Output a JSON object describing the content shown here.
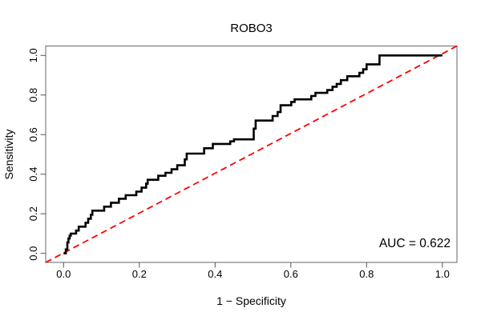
{
  "figure": {
    "kind": "ROC curve plot (R base graphics style)",
    "background": "#FFFFFF"
  },
  "colors": {
    "curve": "#000000",
    "diagonal": "#FF0000",
    "frame": "#666666",
    "tick": "#555555",
    "text": "#000000",
    "background": "#FFFFFF"
  },
  "chart_data": {
    "type": "line",
    "subtype": "roc-step-curve",
    "title": "ROBO3",
    "xlabel": "1 − Specificity",
    "ylabel": "Sensitivity",
    "xlim": [
      0,
      1
    ],
    "ylim": [
      0,
      1
    ],
    "grid": false,
    "legend": "none",
    "auc": 0.622,
    "x_ticks": {
      "values": [
        0.0,
        0.2,
        0.4,
        0.6,
        0.8,
        1.0
      ],
      "labels": [
        "0.0",
        "0.2",
        "0.4",
        "0.6",
        "0.8",
        "1.0"
      ]
    },
    "y_ticks": {
      "values": [
        0.0,
        0.2,
        0.4,
        0.6,
        0.8,
        1.0
      ],
      "labels": [
        "0.0",
        "0.2",
        "0.4",
        "0.6",
        "0.8",
        "1.0"
      ]
    },
    "annotations": [
      {
        "text": "AUC = 0.622",
        "x": 0.97,
        "y": 0.05,
        "align": "right"
      }
    ],
    "series": [
      {
        "name": "ROC curve",
        "color": "#000000",
        "style": "step",
        "line_width": 2.6,
        "start": [
          0,
          0
        ],
        "end": [
          1,
          1
        ],
        "steps": [
          [
            0.006,
            0.02
          ],
          [
            0.01,
            0.055
          ],
          [
            0.013,
            0.075
          ],
          [
            0.016,
            0.09
          ],
          [
            0.019,
            0.1
          ],
          [
            0.033,
            0.115
          ],
          [
            0.04,
            0.135
          ],
          [
            0.058,
            0.155
          ],
          [
            0.065,
            0.175
          ],
          [
            0.072,
            0.195
          ],
          [
            0.076,
            0.216
          ],
          [
            0.107,
            0.236
          ],
          [
            0.125,
            0.256
          ],
          [
            0.146,
            0.276
          ],
          [
            0.164,
            0.294
          ],
          [
            0.192,
            0.312
          ],
          [
            0.206,
            0.332
          ],
          [
            0.218,
            0.352
          ],
          [
            0.222,
            0.372
          ],
          [
            0.25,
            0.392
          ],
          [
            0.269,
            0.407
          ],
          [
            0.285,
            0.425
          ],
          [
            0.3,
            0.445
          ],
          [
            0.32,
            0.475
          ],
          [
            0.325,
            0.504
          ],
          [
            0.371,
            0.531
          ],
          [
            0.394,
            0.553
          ],
          [
            0.44,
            0.566
          ],
          [
            0.45,
            0.576
          ],
          [
            0.502,
            0.63
          ],
          [
            0.507,
            0.671
          ],
          [
            0.552,
            0.694
          ],
          [
            0.565,
            0.714
          ],
          [
            0.573,
            0.748
          ],
          [
            0.601,
            0.765
          ],
          [
            0.61,
            0.778
          ],
          [
            0.654,
            0.795
          ],
          [
            0.665,
            0.811
          ],
          [
            0.696,
            0.825
          ],
          [
            0.71,
            0.842
          ],
          [
            0.721,
            0.856
          ],
          [
            0.732,
            0.875
          ],
          [
            0.749,
            0.895
          ],
          [
            0.781,
            0.912
          ],
          [
            0.791,
            0.93
          ],
          [
            0.8,
            0.955
          ],
          [
            0.834,
            1.0
          ]
        ]
      },
      {
        "name": "chance diagonal",
        "color": "#FF0000",
        "style": "dashed",
        "line_width": 1.8,
        "points": [
          [
            0,
            0
          ],
          [
            1,
            1
          ]
        ]
      }
    ]
  }
}
